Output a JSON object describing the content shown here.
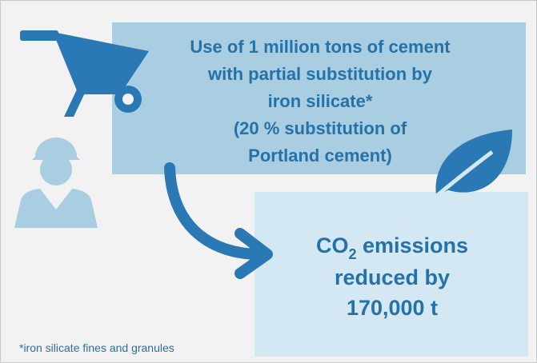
{
  "source_box": {
    "lines": [
      "Use of 1 million tons of cement",
      "with partial substitution by",
      "iron silicate*",
      "(20 % substitution of",
      "Portland cement)"
    ]
  },
  "result_box": {
    "line1": {
      "text": "CO",
      "subscript": "2",
      "rest": " emissions"
    },
    "line2": "reduced by",
    "line3": "170,000 t"
  },
  "footnote": "*iron silicate fines and granules"
}
